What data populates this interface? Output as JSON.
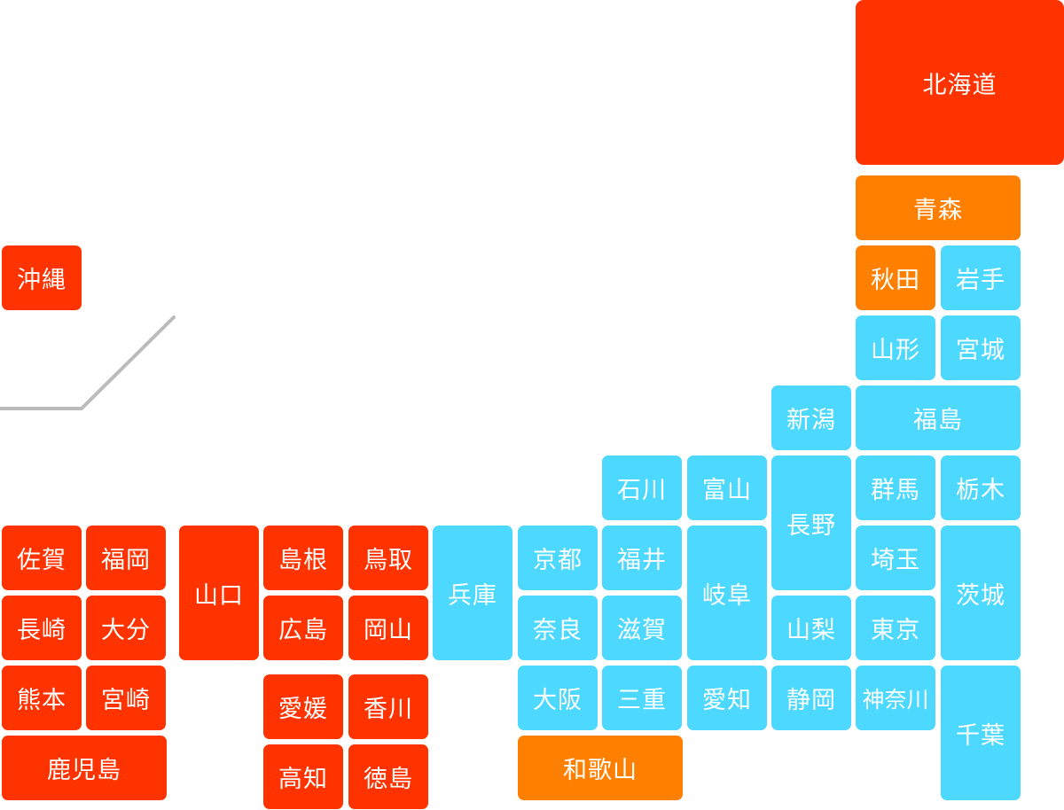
{
  "colors": {
    "red": "#ff3300",
    "orange": "#ff8000",
    "cyan": "#4dd8ff",
    "divider": "#bbbbbb"
  },
  "prefectures": [
    {
      "id": "hokkaido",
      "name": "北海道",
      "color": "red"
    },
    {
      "id": "aomori",
      "name": "青森",
      "color": "orange"
    },
    {
      "id": "akita",
      "name": "秋田",
      "color": "orange"
    },
    {
      "id": "iwate",
      "name": "岩手",
      "color": "cyan"
    },
    {
      "id": "yamagata",
      "name": "山形",
      "color": "cyan"
    },
    {
      "id": "miyagi",
      "name": "宮城",
      "color": "cyan"
    },
    {
      "id": "niigata",
      "name": "新潟",
      "color": "cyan"
    },
    {
      "id": "fukushima",
      "name": "福島",
      "color": "cyan"
    },
    {
      "id": "ishikawa",
      "name": "石川",
      "color": "cyan"
    },
    {
      "id": "toyama",
      "name": "富山",
      "color": "cyan"
    },
    {
      "id": "nagano",
      "name": "長野",
      "color": "cyan"
    },
    {
      "id": "gunma",
      "name": "群馬",
      "color": "cyan"
    },
    {
      "id": "tochigi",
      "name": "栃木",
      "color": "cyan"
    },
    {
      "id": "saga",
      "name": "佐賀",
      "color": "red"
    },
    {
      "id": "fukuoka",
      "name": "福岡",
      "color": "red"
    },
    {
      "id": "yamaguchi",
      "name": "山口",
      "color": "red"
    },
    {
      "id": "shimane",
      "name": "島根",
      "color": "red"
    },
    {
      "id": "tottori",
      "name": "鳥取",
      "color": "red"
    },
    {
      "id": "hyogo",
      "name": "兵庫",
      "color": "cyan"
    },
    {
      "id": "kyoto",
      "name": "京都",
      "color": "cyan"
    },
    {
      "id": "fukui",
      "name": "福井",
      "color": "cyan"
    },
    {
      "id": "gifu",
      "name": "岐阜",
      "color": "cyan"
    },
    {
      "id": "saitama",
      "name": "埼玉",
      "color": "cyan"
    },
    {
      "id": "ibaraki",
      "name": "茨城",
      "color": "cyan"
    },
    {
      "id": "nagasaki",
      "name": "長崎",
      "color": "red"
    },
    {
      "id": "oita",
      "name": "大分",
      "color": "red"
    },
    {
      "id": "hiroshima",
      "name": "広島",
      "color": "red"
    },
    {
      "id": "okayama",
      "name": "岡山",
      "color": "red"
    },
    {
      "id": "nara",
      "name": "奈良",
      "color": "cyan"
    },
    {
      "id": "shiga",
      "name": "滋賀",
      "color": "cyan"
    },
    {
      "id": "yamanashi",
      "name": "山梨",
      "color": "cyan"
    },
    {
      "id": "tokyo",
      "name": "東京",
      "color": "cyan"
    },
    {
      "id": "kumamoto",
      "name": "熊本",
      "color": "red"
    },
    {
      "id": "miyazaki",
      "name": "宮崎",
      "color": "red"
    },
    {
      "id": "ehime",
      "name": "愛媛",
      "color": "red"
    },
    {
      "id": "kagawa",
      "name": "香川",
      "color": "red"
    },
    {
      "id": "osaka",
      "name": "大阪",
      "color": "cyan"
    },
    {
      "id": "mie",
      "name": "三重",
      "color": "cyan"
    },
    {
      "id": "aichi",
      "name": "愛知",
      "color": "cyan"
    },
    {
      "id": "shizuoka",
      "name": "静岡",
      "color": "cyan"
    },
    {
      "id": "kanagawa",
      "name": "神奈川",
      "color": "cyan"
    },
    {
      "id": "chiba",
      "name": "千葉",
      "color": "cyan"
    },
    {
      "id": "kagoshima",
      "name": "鹿児島",
      "color": "red"
    },
    {
      "id": "kochi",
      "name": "高知",
      "color": "red"
    },
    {
      "id": "tokushima",
      "name": "徳島",
      "color": "red"
    },
    {
      "id": "wakayama",
      "name": "和歌山",
      "color": "orange"
    },
    {
      "id": "okinawa",
      "name": "沖縄",
      "color": "red"
    }
  ]
}
